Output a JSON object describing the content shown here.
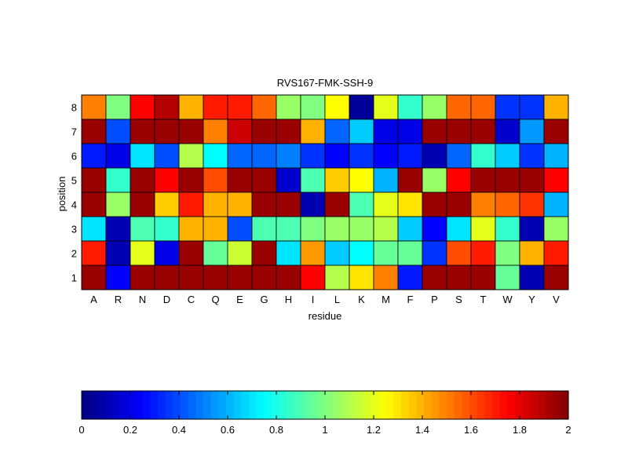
{
  "chart_data": [
    {
      "type": "heatmap",
      "title": "RVS167-FMK-SSH-9",
      "xlabel": "residue",
      "ylabel": "position",
      "x_categories": [
        "A",
        "R",
        "N",
        "D",
        "C",
        "Q",
        "E",
        "G",
        "H",
        "I",
        "L",
        "K",
        "M",
        "F",
        "P",
        "S",
        "T",
        "W",
        "Y",
        "V"
      ],
      "y_categories": [
        "1",
        "2",
        "3",
        "4",
        "5",
        "6",
        "7",
        "8"
      ],
      "value_range": [
        0,
        2
      ],
      "colormap": "jet",
      "rows": [
        {
          "position": "8",
          "values": [
            1.5,
            1.0,
            1.75,
            1.9,
            1.4,
            1.7,
            1.7,
            1.55,
            1.05,
            1.0,
            1.25,
            0.05,
            1.2,
            0.85,
            1.05,
            1.55,
            1.55,
            0.35,
            0.35,
            1.4
          ]
        },
        {
          "position": "7",
          "values": [
            1.95,
            0.4,
            1.95,
            1.95,
            1.95,
            1.5,
            1.85,
            1.95,
            1.95,
            1.4,
            0.45,
            0.65,
            0.2,
            0.2,
            1.95,
            1.95,
            1.95,
            0.15,
            0.55,
            1.95
          ]
        },
        {
          "position": "6",
          "values": [
            0.3,
            0.2,
            0.7,
            0.4,
            1.1,
            0.75,
            0.45,
            0.45,
            0.5,
            0.35,
            0.25,
            0.35,
            0.25,
            0.3,
            0.1,
            0.45,
            0.85,
            0.65,
            0.35,
            0.6
          ]
        },
        {
          "position": "5",
          "values": [
            1.95,
            0.85,
            1.95,
            1.75,
            1.95,
            1.6,
            1.95,
            1.95,
            0.15,
            0.9,
            1.35,
            1.25,
            0.6,
            1.95,
            1.05,
            1.75,
            1.95,
            1.95,
            1.95,
            1.75
          ]
        },
        {
          "position": "4",
          "values": [
            1.95,
            1.05,
            1.95,
            1.35,
            1.7,
            1.4,
            1.4,
            1.95,
            1.95,
            0.1,
            1.95,
            0.9,
            1.2,
            1.3,
            1.95,
            1.95,
            1.5,
            1.55,
            1.65,
            0.6
          ]
        },
        {
          "position": "3",
          "values": [
            0.7,
            0.1,
            0.9,
            0.85,
            1.4,
            1.4,
            0.4,
            0.9,
            0.9,
            1.0,
            1.05,
            1.05,
            1.1,
            0.65,
            0.25,
            0.7,
            1.2,
            0.85,
            0.1,
            1.05
          ]
        },
        {
          "position": "2",
          "values": [
            1.7,
            0.1,
            1.2,
            0.2,
            1.95,
            0.95,
            1.15,
            1.95,
            0.7,
            1.45,
            0.65,
            0.75,
            0.95,
            0.95,
            0.35,
            1.6,
            1.7,
            1.0,
            1.4,
            1.7
          ]
        },
        {
          "position": "1",
          "values": [
            1.95,
            0.25,
            1.95,
            1.95,
            1.95,
            1.95,
            1.95,
            1.95,
            1.95,
            1.75,
            1.1,
            1.3,
            1.5,
            0.3,
            1.95,
            1.95,
            1.95,
            0.95,
            0.1,
            1.95
          ]
        }
      ]
    },
    {
      "type": "colorbar",
      "min": 0,
      "max": 2,
      "tick_labels": [
        "0",
        "0.2",
        "0.4",
        "0.6",
        "0.8",
        "1",
        "1.2",
        "1.4",
        "1.6",
        "1.8",
        "2"
      ]
    }
  ]
}
